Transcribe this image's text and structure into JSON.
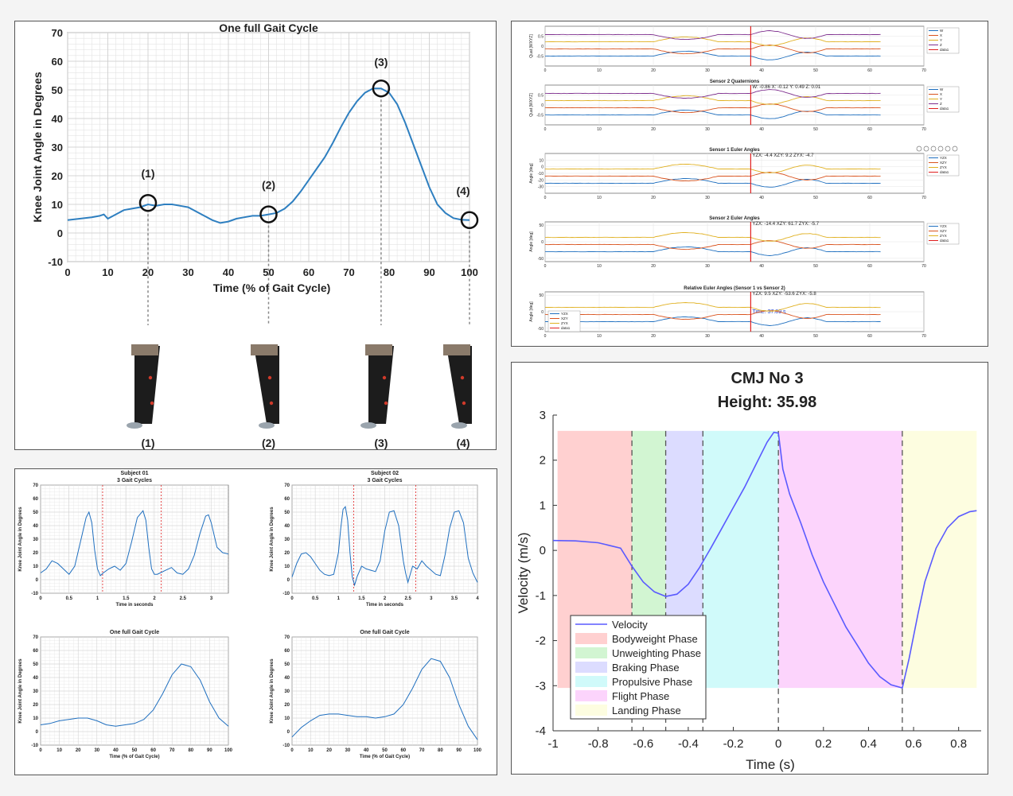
{
  "chart_data": [
    {
      "id": "gait_main",
      "type": "line",
      "title": "One full Gait Cycle",
      "xlabel": "Time (% of Gait Cycle)",
      "ylabel": "Knee Joint Angle in Degrees",
      "xlim": [
        0,
        100
      ],
      "ylim": [
        -10,
        70
      ],
      "xticks": [
        "0",
        "10",
        "20",
        "30",
        "40",
        "50",
        "60",
        "70",
        "80",
        "90",
        "100"
      ],
      "yticks": [
        "-10",
        "0",
        "10",
        "20",
        "30",
        "40",
        "50",
        "60",
        "70"
      ],
      "grid": true,
      "series": [
        {
          "x": [
            0,
            3,
            6,
            8,
            9,
            10,
            12,
            14,
            16,
            18,
            20,
            22,
            24,
            26,
            28,
            30,
            32,
            34,
            36,
            38,
            40,
            42,
            44,
            46,
            48,
            50,
            52,
            54,
            56,
            58,
            60,
            62,
            64,
            66,
            68,
            70,
            72,
            74,
            76,
            78,
            80,
            82,
            84,
            86,
            88,
            90,
            92,
            94,
            96,
            98,
            100
          ],
          "values": [
            4.5,
            5,
            5.5,
            6,
            6.5,
            5,
            6.5,
            8,
            8.5,
            9,
            10,
            9.5,
            10,
            10,
            9.5,
            9,
            7.5,
            6,
            4.5,
            3.5,
            4,
            5,
            5.5,
            6,
            6,
            6.5,
            7,
            8.5,
            11,
            14.5,
            18.5,
            22.5,
            26.5,
            31.5,
            37,
            42,
            46,
            49,
            50.5,
            50.5,
            49,
            45,
            38.5,
            31,
            23.5,
            16,
            10,
            7,
            5.2,
            4.6,
            4.5
          ]
        }
      ],
      "annotations": [
        {
          "label": "(1)",
          "x": 20,
          "y": 10.5
        },
        {
          "label": "(2)",
          "x": 50,
          "y": 6.5
        },
        {
          "label": "(3)",
          "x": 78,
          "y": 50.5
        },
        {
          "label": "(4)",
          "x": 100,
          "y": 4.5
        }
      ],
      "photo_labels": [
        "(1)",
        "(2)",
        "(3)",
        "(4)"
      ]
    },
    {
      "id": "sensor_dashboard",
      "type": "line",
      "subplots": [
        {
          "title": "",
          "ylabel": "Quat [WXYZ]",
          "legend": [
            "W",
            "X",
            "Y",
            "Z",
            "data1"
          ],
          "ylim": [
            -1,
            1
          ],
          "yticks": [
            "-0.5",
            "0",
            "0.5"
          ]
        },
        {
          "title": "Sensor 2 Quaternions",
          "ylabel": "Quat [WXYZ]",
          "readout": "W: -0.86  X: -0.12  Y: 0.49  Z: 0.01",
          "legend": [
            "W",
            "X",
            "Y",
            "Z",
            "data1"
          ],
          "ylim": [
            -1,
            1
          ],
          "yticks": [
            "-0.5",
            "0",
            "0.5"
          ]
        },
        {
          "title": "Sensor 1 Euler Angles",
          "ylabel": "Angle [deg]",
          "readout": "YZX: -4.4  XZY: 9.2  ZYX: -4.7",
          "legend": [
            "YZX",
            "XZY",
            "ZYX",
            "data1"
          ],
          "ylim": [
            -40,
            20
          ],
          "yticks": [
            "10",
            "0",
            "-10",
            "-20",
            "-30"
          ]
        },
        {
          "title": "Sensor 2 Euler Angles",
          "ylabel": "Angle [deg]",
          "readout": "YZX: -14.4  XZY: 61.7  ZYX: -5.7",
          "legend": [
            "YZX",
            "XZY",
            "ZYX",
            "data1"
          ],
          "ylim": [
            -60,
            60
          ],
          "yticks": [
            "50",
            "0",
            "-50"
          ]
        },
        {
          "title": "Relative Euler Angles (Sensor 1 vs Sensor 2)",
          "ylabel": "Angle [deg]",
          "readout": "YZX: 9.5  XZY: -53.6  ZYX: -5.8",
          "time_readout": "Time: 37.89 s",
          "legend": [
            "YZX",
            "XZY",
            "ZYX",
            "data1"
          ],
          "ylim": [
            -60,
            60
          ],
          "yticks": [
            "50",
            "0",
            "-50"
          ]
        }
      ],
      "xticks": [
        "0",
        "10",
        "20",
        "30",
        "40",
        "50",
        "60",
        "70"
      ],
      "xlim": [
        0,
        70
      ],
      "cursor_x": 38
    },
    {
      "id": "subject01",
      "type": "line",
      "title": "Subject 01",
      "subtitle": "3 Gait Cycles",
      "xlabel": "Time in seconds",
      "ylabel": "Knee Joint Angle in Degrees",
      "xlim": [
        0,
        3.3
      ],
      "ylim": [
        -10,
        70
      ],
      "xticks": [
        "0",
        "0.5",
        "1",
        "1.5",
        "2",
        "2.5",
        "3"
      ],
      "yticks": [
        "-10",
        "0",
        "10",
        "20",
        "30",
        "40",
        "50",
        "60",
        "70"
      ],
      "dividers": [
        1.09,
        2.12
      ],
      "series": [
        {
          "x": [
            0,
            0.1,
            0.2,
            0.3,
            0.4,
            0.5,
            0.6,
            0.7,
            0.8,
            0.85,
            0.9,
            0.95,
            1.0,
            1.05,
            1.1,
            1.2,
            1.3,
            1.4,
            1.5,
            1.6,
            1.7,
            1.8,
            1.85,
            1.9,
            1.95,
            2.0,
            2.05,
            2.1,
            2.2,
            2.3,
            2.4,
            2.5,
            2.6,
            2.7,
            2.8,
            2.9,
            2.95,
            3.0,
            3.1,
            3.2,
            3.3
          ],
          "values": [
            5,
            8,
            14,
            12,
            8,
            4,
            10,
            28,
            46,
            50,
            42,
            22,
            8,
            3,
            5,
            8,
            10,
            7,
            12,
            28,
            46,
            51,
            44,
            24,
            8,
            4,
            4,
            5,
            7,
            9,
            5,
            4,
            8,
            18,
            34,
            47,
            48,
            42,
            24,
            20,
            19
          ]
        }
      ]
    },
    {
      "id": "subject02",
      "type": "line",
      "title": "Subject 02",
      "subtitle": "3 Gait Cycles",
      "xlabel": "Time in seconds",
      "ylabel": "Knee Joint Angle in Degrees",
      "xlim": [
        0,
        4
      ],
      "ylim": [
        -10,
        70
      ],
      "xticks": [
        "0",
        "0.5",
        "1",
        "1.5",
        "2",
        "2.5",
        "3",
        "3.5",
        "4"
      ],
      "yticks": [
        "-10",
        "0",
        "10",
        "20",
        "30",
        "40",
        "50",
        "60",
        "70"
      ],
      "dividers": [
        1.33,
        2.67
      ],
      "series": [
        {
          "x": [
            0,
            0.1,
            0.2,
            0.3,
            0.4,
            0.5,
            0.6,
            0.7,
            0.8,
            0.9,
            1.0,
            1.05,
            1.1,
            1.15,
            1.2,
            1.25,
            1.3,
            1.35,
            1.4,
            1.5,
            1.6,
            1.7,
            1.8,
            1.9,
            2.0,
            2.1,
            2.2,
            2.3,
            2.4,
            2.45,
            2.5,
            2.55,
            2.6,
            2.65,
            2.7,
            2.8,
            2.9,
            3.0,
            3.1,
            3.2,
            3.3,
            3.4,
            3.5,
            3.6,
            3.7,
            3.8,
            3.9,
            4.0
          ],
          "values": [
            2,
            12,
            19,
            20,
            17,
            12,
            7,
            4,
            3,
            4,
            20,
            38,
            52,
            54,
            44,
            20,
            2,
            -4,
            2,
            10,
            8,
            7,
            6,
            14,
            36,
            50,
            51,
            40,
            14,
            5,
            -2,
            4,
            10,
            9,
            8,
            14,
            10,
            7,
            4,
            3,
            18,
            38,
            50,
            51,
            42,
            16,
            5,
            -2
          ]
        }
      ]
    },
    {
      "id": "gait_sub1",
      "type": "line",
      "title": "One full Gait Cycle",
      "xlabel": "Time (% of Gait Cycle)",
      "ylabel": "Knee Joint Angle in Degrees",
      "xlim": [
        0,
        100
      ],
      "ylim": [
        -10,
        70
      ],
      "xticks": [
        "0",
        "10",
        "20",
        "30",
        "40",
        "50",
        "60",
        "70",
        "80",
        "90",
        "100"
      ],
      "yticks": [
        "-10",
        "0",
        "10",
        "20",
        "30",
        "40",
        "50",
        "60",
        "70"
      ],
      "series": [
        {
          "x": [
            0,
            5,
            10,
            15,
            20,
            25,
            30,
            35,
            40,
            45,
            50,
            55,
            60,
            65,
            70,
            75,
            80,
            85,
            90,
            95,
            100
          ],
          "values": [
            5,
            6,
            8,
            9,
            10,
            10,
            8,
            5,
            4,
            5,
            6,
            9,
            16,
            28,
            42,
            50,
            48,
            38,
            22,
            10,
            4
          ]
        }
      ]
    },
    {
      "id": "gait_sub2",
      "type": "line",
      "title": "One full Gait Cycle",
      "xlabel": "Time (% of Gait Cycle)",
      "ylabel": "Knee Joint Angle in Degrees",
      "xlim": [
        0,
        100
      ],
      "ylim": [
        -10,
        70
      ],
      "xticks": [
        "0",
        "10",
        "20",
        "30",
        "40",
        "50",
        "60",
        "70",
        "80",
        "90",
        "100"
      ],
      "yticks": [
        "-10",
        "0",
        "10",
        "20",
        "30",
        "40",
        "50",
        "60",
        "70"
      ],
      "series": [
        {
          "x": [
            0,
            5,
            10,
            15,
            20,
            25,
            30,
            35,
            40,
            45,
            50,
            55,
            60,
            65,
            70,
            75,
            80,
            85,
            90,
            95,
            100
          ],
          "values": [
            -4,
            3,
            8,
            12,
            13,
            13,
            12,
            11,
            11,
            10,
            11,
            13,
            20,
            32,
            46,
            54,
            52,
            40,
            20,
            4,
            -6
          ]
        }
      ]
    },
    {
      "id": "cmj",
      "type": "line",
      "title": "CMJ No 3",
      "subtitle": "Height: 35.98",
      "xlabel": "Time (s)",
      "ylabel": "Velocity (m/s)",
      "xlim": [
        -1,
        0.9
      ],
      "ylim": [
        -4,
        3
      ],
      "xticks": [
        "-1",
        "-0.8",
        "-0.6",
        "-0.4",
        "-0.2",
        "0",
        "0.2",
        "0.4",
        "0.6",
        "0.8"
      ],
      "yticks": [
        "-4",
        "-3",
        "-2",
        "-1",
        "0",
        "1",
        "2",
        "3"
      ],
      "vlines": [
        -0.65,
        -0.5,
        -0.335,
        0,
        0.55
      ],
      "series": [
        {
          "name": "Velocity",
          "color": "#5a5aff",
          "x": [
            -1,
            -0.9,
            -0.8,
            -0.7,
            -0.65,
            -0.6,
            -0.55,
            -0.5,
            -0.45,
            -0.4,
            -0.35,
            -0.3,
            -0.25,
            -0.2,
            -0.15,
            -0.1,
            -0.05,
            -0.02,
            0,
            0.02,
            0.05,
            0.1,
            0.15,
            0.2,
            0.25,
            0.3,
            0.35,
            0.4,
            0.45,
            0.5,
            0.55,
            0.58,
            0.62,
            0.65,
            0.7,
            0.75,
            0.8,
            0.85,
            0.88
          ],
          "values": [
            0.22,
            0.21,
            0.17,
            0.05,
            -0.35,
            -0.7,
            -0.92,
            -1.02,
            -0.97,
            -0.75,
            -0.38,
            0.05,
            0.5,
            0.95,
            1.4,
            1.9,
            2.4,
            2.62,
            2.6,
            1.8,
            1.25,
            0.6,
            -0.1,
            -0.7,
            -1.2,
            -1.7,
            -2.1,
            -2.5,
            -2.8,
            -2.98,
            -3.05,
            -2.4,
            -1.4,
            -0.7,
            0.05,
            0.5,
            0.75,
            0.86,
            0.88
          ]
        }
      ],
      "phases": [
        {
          "name": "Bodyweight Phase",
          "color": "#ffd0d0",
          "x0": -0.98,
          "x1": -0.65
        },
        {
          "name": "Unweighting Phase",
          "color": "#d2f5d2",
          "x0": -0.65,
          "x1": -0.5
        },
        {
          "name": "Braking Phase",
          "color": "#dcdcff",
          "x0": -0.5,
          "x1": -0.335
        },
        {
          "name": "Propulsive Phase",
          "color": "#d0fafa",
          "x0": -0.335,
          "x1": 0
        },
        {
          "name": "Flight Phase",
          "color": "#fcd4fc",
          "x0": 0,
          "x1": 0.55
        },
        {
          "name": "Landing Phase",
          "color": "#fdfde0",
          "x0": 0.55,
          "x1": 0.88
        }
      ],
      "legend": [
        "Velocity",
        "Bodyweight Phase",
        "Unweighting Phase",
        "Braking Phase",
        "Propulsive Phase",
        "Flight Phase",
        "Landing Phase"
      ],
      "legend_position": "bottom-left"
    }
  ]
}
